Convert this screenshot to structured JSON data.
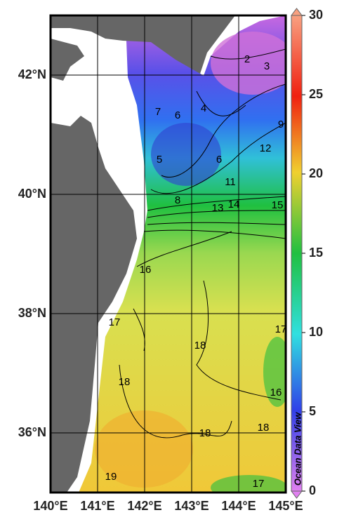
{
  "map": {
    "xlim": [
      140,
      145
    ],
    "ylim": [
      35,
      43
    ],
    "xticks": [
      {
        "value": 140,
        "label": "140°E"
      },
      {
        "value": 141,
        "label": "141°E"
      },
      {
        "value": 142,
        "label": "142°E"
      },
      {
        "value": 143,
        "label": "143°E"
      },
      {
        "value": 144,
        "label": "144°E"
      },
      {
        "value": 145,
        "label": "145°E"
      }
    ],
    "yticks": [
      {
        "value": 36,
        "label": "36°N"
      },
      {
        "value": 38,
        "label": "38°N"
      },
      {
        "value": 40,
        "label": "40°N"
      },
      {
        "value": 42,
        "label": "42°N"
      }
    ],
    "grid": true,
    "colorbar": {
      "lim": [
        0,
        30
      ],
      "ticks": [
        0,
        5,
        10,
        15,
        20,
        25,
        30
      ]
    },
    "contour_labels": [
      2,
      3,
      4,
      6,
      7,
      5,
      6,
      9,
      12,
      11,
      8,
      13,
      14,
      15,
      16,
      17,
      18,
      18,
      17,
      16,
      18,
      18,
      19,
      17
    ],
    "watermark": "Ocean Data View"
  }
}
